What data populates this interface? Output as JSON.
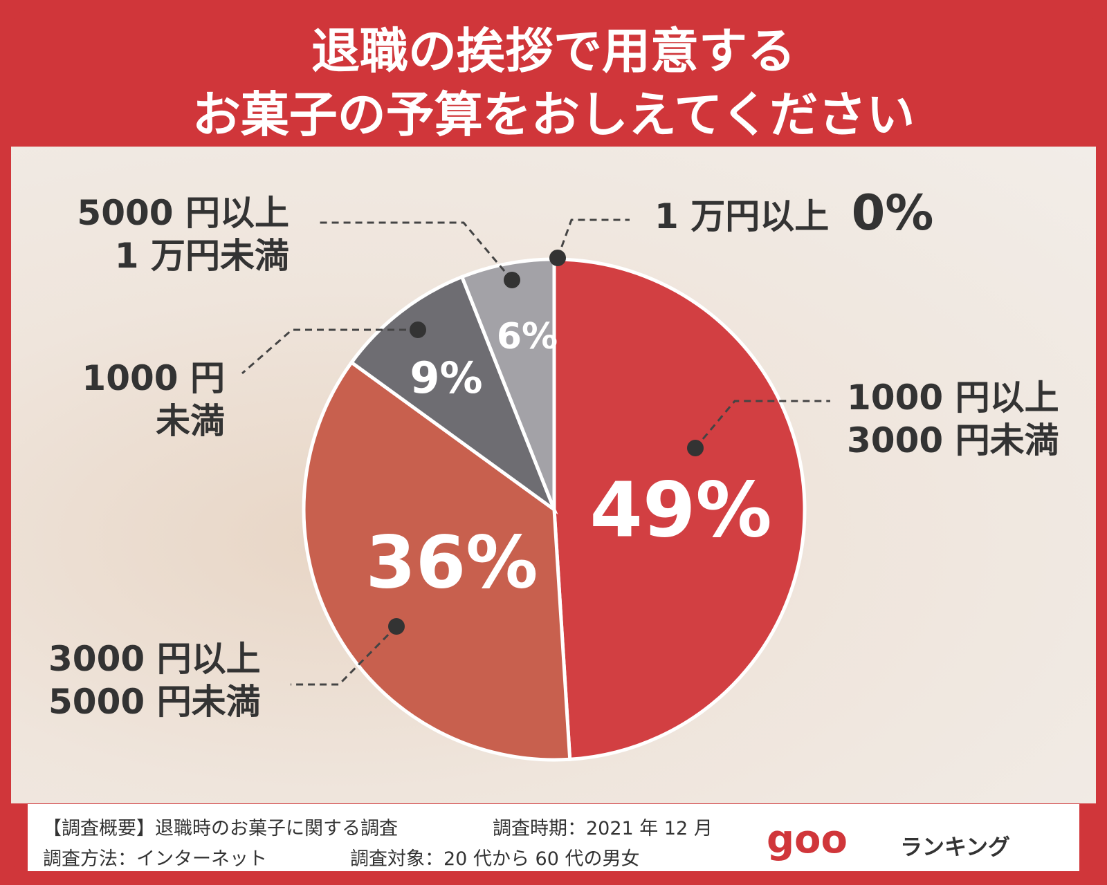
{
  "title": [
    "退職の挨拶で用意する",
    "お菓子の予算をおしえてください"
  ],
  "chart_data": {
    "type": "pie",
    "categories": [
      "1000 円以上\n3000 円未満",
      "3000 円以上\n5000 円未満",
      "1000 円\n未満",
      "5000 円以上\n1 万円未満",
      "1 万円以上"
    ],
    "values": [
      49,
      36,
      9,
      6,
      0
    ],
    "value_labels": [
      "49%",
      "36%",
      "9%",
      "6%",
      "0%"
    ],
    "colors": [
      "#d23f42",
      "#c8604e",
      "#6e6d72",
      "#a3a2a7",
      "#d23f42"
    ]
  },
  "footer": {
    "notes": [
      "【調査概要】退職時のお菓子に関する調査",
      "調査時期：2021 年 12 月",
      "調査方法：インターネット",
      "調査対象：20 代から 60 代の男女"
    ],
    "logo": "goo",
    "logo_text": "ランキング"
  }
}
